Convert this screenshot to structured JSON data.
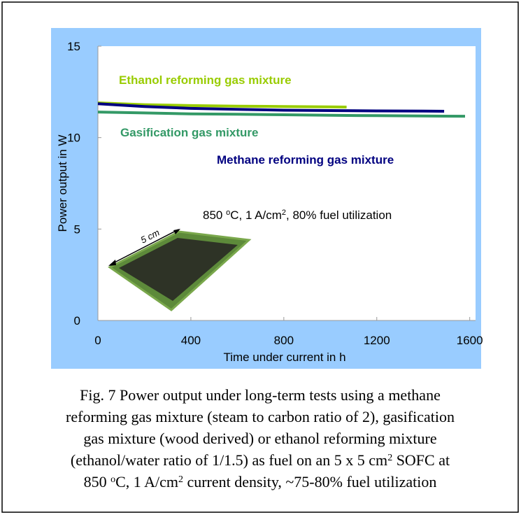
{
  "chart_data": {
    "type": "line",
    "y_label": "Power output in W",
    "x_label": "Time under current in h",
    "xlim": [
      0,
      1625
    ],
    "ylim": [
      0,
      15
    ],
    "xticks": [
      0,
      400,
      800,
      1200,
      1600
    ],
    "yticks": [
      0,
      5,
      10,
      15
    ],
    "series": [
      {
        "name": "Ethanol reforming gas mixture",
        "color": "#99cc00",
        "x": [
          0,
          200,
          400,
          600,
          800,
          1000,
          1070
        ],
        "values": [
          11.9,
          11.8,
          11.75,
          11.72,
          11.7,
          11.68,
          11.67
        ]
      },
      {
        "name": "Methane reforming gas mixture",
        "color": "#000080",
        "x": [
          0,
          200,
          400,
          600,
          800,
          1000,
          1200,
          1400,
          1490
        ],
        "values": [
          11.85,
          11.7,
          11.6,
          11.55,
          11.5,
          11.48,
          11.46,
          11.45,
          11.44
        ]
      },
      {
        "name": "Gasification gas mixture",
        "color": "#339966",
        "x": [
          0,
          200,
          400,
          600,
          800,
          1000,
          1200,
          1400,
          1580
        ],
        "values": [
          11.4,
          11.35,
          11.3,
          11.28,
          11.25,
          11.22,
          11.2,
          11.18,
          11.17
        ]
      }
    ],
    "annotation": [
      "850 ",
      "o",
      "C, 1 A/cm",
      "2",
      ", 80% fuel utilization"
    ],
    "inset_label": "5 cm"
  },
  "caption": [
    [
      "Fig. 7 Power output under long-term tests using a methane"
    ],
    [
      "reforming gas mixture (steam to carbon ratio of 2), gasification"
    ],
    [
      "gas mixture (wood derived) or ethanol reforming mixture"
    ],
    [
      "(ethanol/water ratio of 1/1.5) as fuel on an 5 x 5 cm",
      "2",
      " SOFC at"
    ],
    [
      "850 ",
      "o",
      "C, 1 A/cm",
      "2",
      " current density, ~75-80% fuel utilization"
    ]
  ]
}
